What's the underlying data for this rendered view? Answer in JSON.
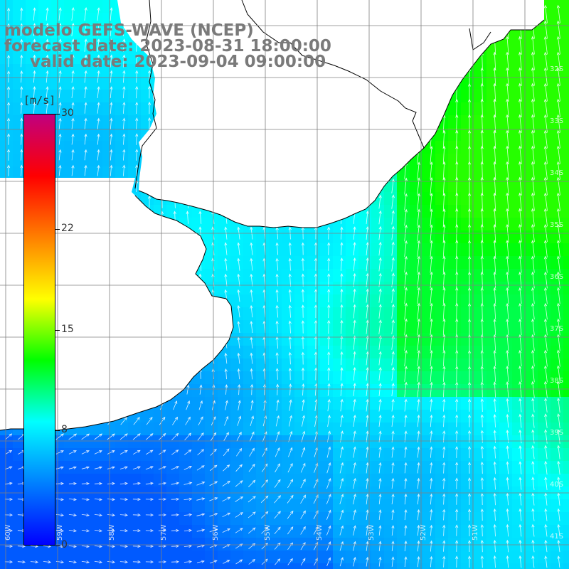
{
  "header": {
    "line1": "modelo GEFS-WAVE (NCEP)",
    "line2": "forecast date: 2023-08-31 18:00:00",
    "line3": "valid date: 2023-09-04 09:00:00"
  },
  "legend": {
    "unit": "[m/s]",
    "ticks": [
      30,
      22,
      15,
      8,
      0
    ],
    "range": [
      0,
      30
    ],
    "colors": [
      "#0000ff",
      "#0080ff",
      "#00ffff",
      "#00ff00",
      "#ffff00",
      "#ff8000",
      "#ff0000",
      "#c00080"
    ]
  },
  "map": {
    "land_color": "#ffffff",
    "coast_color": "#000000",
    "grid_color": "#808080",
    "arrow_color": "#ffffff",
    "grid_on": true,
    "lat_labels": [
      "32S",
      "33S",
      "34S",
      "35S",
      "36S",
      "37S",
      "38S",
      "39S",
      "40S",
      "41S"
    ],
    "lon_labels": [
      "60W",
      "59W",
      "58W",
      "57W",
      "56W",
      "55W",
      "54W",
      "53W",
      "52W",
      "51W"
    ]
  },
  "icons": [
    "wind-arrow-icon"
  ]
}
